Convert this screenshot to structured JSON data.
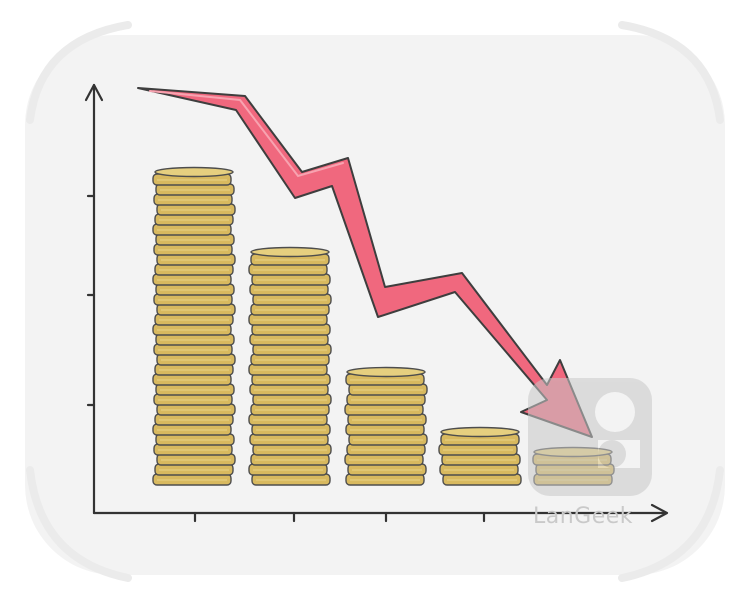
{
  "illustration": {
    "subject": "falling-money-chart-icon",
    "coin_stack_levels": [
      31,
      23,
      11,
      5,
      3
    ],
    "colors": {
      "background": "#f3f3f3",
      "coin_fill": "#d8b95f",
      "coin_top": "#e6cf7f",
      "coin_outline": "#4d4d4d",
      "arrow": "#f0687e",
      "axis": "#333333",
      "watermark": "#c9c9c9"
    }
  },
  "watermark": {
    "text": "LanGeek",
    "icon": "langeek-logo-icon"
  }
}
